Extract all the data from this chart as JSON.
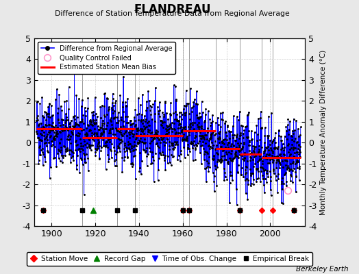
{
  "title": "FLANDREAU",
  "subtitle": "Difference of Station Temperature Data from Regional Average",
  "ylabel": "Monthly Temperature Anomaly Difference (°C)",
  "credit": "Berkeley Earth",
  "xlim": [
    1892,
    2016
  ],
  "ylim": [
    -4,
    5
  ],
  "yticks": [
    -4,
    -3,
    -2,
    -1,
    0,
    1,
    2,
    3,
    4,
    5
  ],
  "xticks": [
    1900,
    1920,
    1940,
    1960,
    1980,
    2000
  ],
  "background_color": "#e8e8e8",
  "plot_bg_color": "#ffffff",
  "grid_color": "#c8c8c8",
  "seed": 42,
  "bias_segments": [
    {
      "x_start": 1893,
      "x_end": 1914,
      "bias": 0.65
    },
    {
      "x_start": 1914,
      "x_end": 1930,
      "bias": 0.25
    },
    {
      "x_start": 1930,
      "x_end": 1938,
      "bias": 0.65
    },
    {
      "x_start": 1938,
      "x_end": 1960,
      "bias": 0.35
    },
    {
      "x_start": 1960,
      "x_end": 1963,
      "bias": 0.55
    },
    {
      "x_start": 1963,
      "x_end": 1975,
      "bias": 0.55
    },
    {
      "x_start": 1975,
      "x_end": 1986,
      "bias": -0.3
    },
    {
      "x_start": 1986,
      "x_end": 1996,
      "bias": -0.55
    },
    {
      "x_start": 1996,
      "x_end": 2001,
      "bias": -0.7
    },
    {
      "x_start": 2001,
      "x_end": 2014,
      "bias": -0.7
    }
  ],
  "event_markers": {
    "station_move": [
      1896,
      1960,
      1963,
      1986,
      1996,
      2001,
      2011
    ],
    "record_gap": [
      1919
    ],
    "time_of_obs_change": [],
    "empirical_break": [
      1896,
      1914,
      1930,
      1938,
      1960,
      1963,
      1986,
      2011
    ]
  },
  "qc_fail_year": 2008,
  "qc_fail_value": -2.3,
  "vertical_lines": [
    1914,
    1930,
    1938,
    1960,
    1963,
    1975,
    1986,
    1996,
    2001
  ],
  "t_start": 1893.0,
  "t_end": 2014.0,
  "noise_std": 0.85,
  "trend_nodes_x": [
    1893,
    1914,
    1930,
    1938,
    1960,
    1963,
    1975,
    1986,
    1996,
    2001,
    2014
  ],
  "trend_nodes_y": [
    0.65,
    0.25,
    0.65,
    0.35,
    0.55,
    0.55,
    -0.3,
    -0.55,
    -0.7,
    -0.7,
    -0.7
  ]
}
